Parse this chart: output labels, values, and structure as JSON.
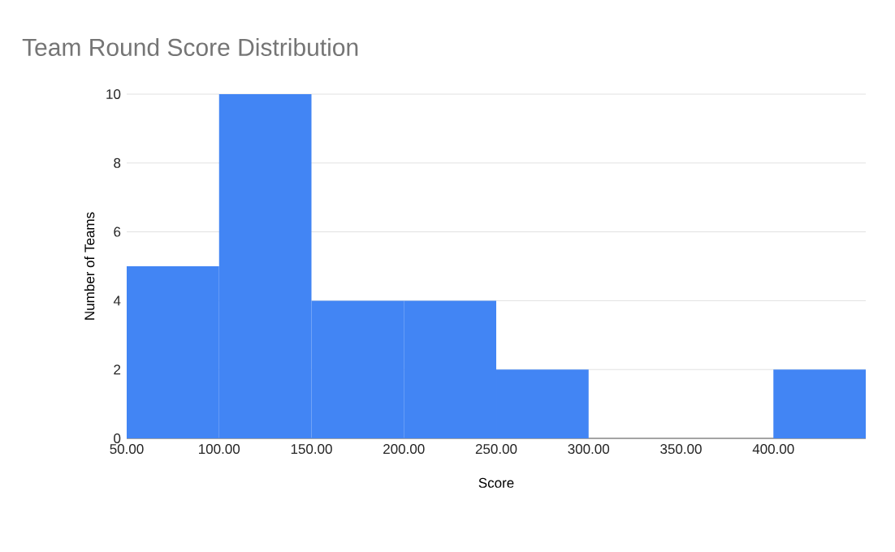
{
  "chart_data": {
    "type": "histogram",
    "title": "Team Round Score Distribution",
    "xlabel": "Score",
    "ylabel": "Number of Teams",
    "bins": [
      50,
      100,
      150,
      200,
      250,
      300,
      350,
      400,
      450
    ],
    "values": [
      5,
      10,
      4,
      4,
      2,
      0,
      0,
      2
    ],
    "color": "#4285f4",
    "xlim": [
      50,
      450
    ],
    "ylim": [
      0,
      10
    ],
    "xticks": [
      {
        "value": 50,
        "label": "50.00"
      },
      {
        "value": 100,
        "label": "100.00"
      },
      {
        "value": 150,
        "label": "150.00"
      },
      {
        "value": 200,
        "label": "200.00"
      },
      {
        "value": 250,
        "label": "250.00"
      },
      {
        "value": 300,
        "label": "300.00"
      },
      {
        "value": 350,
        "label": "350.00"
      },
      {
        "value": 400,
        "label": "400.00"
      }
    ],
    "yticks": [
      0,
      2,
      4,
      6,
      8,
      10
    ],
    "grid": "y"
  }
}
